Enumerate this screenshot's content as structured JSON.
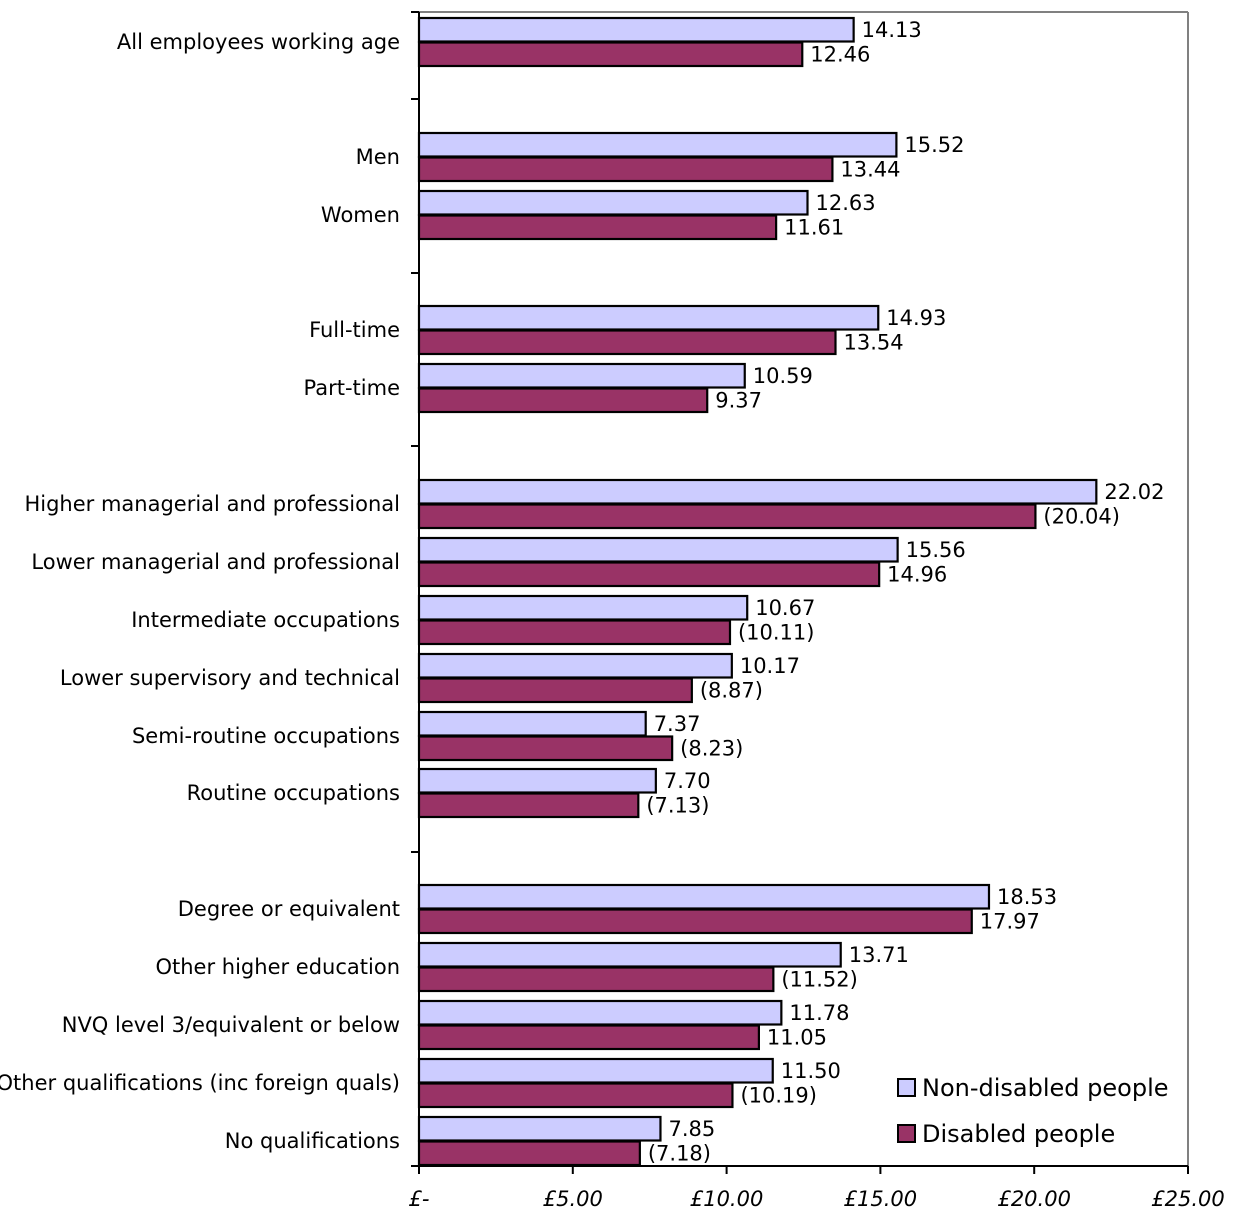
{
  "chart_data": {
    "type": "bar",
    "orientation": "horizontal",
    "title": "",
    "xlabel": "",
    "ylabel": "",
    "xlim": [
      0,
      25
    ],
    "x_ticks": [
      0,
      5,
      10,
      15,
      20,
      25
    ],
    "x_tick_labels": [
      "£-",
      "£5.00",
      "£10.00",
      "£15.00",
      "£20.00",
      "£25.00"
    ],
    "grid": false,
    "legend_position": "bottom-right",
    "categories": [
      "All employees working age",
      "Men",
      "Women",
      "Full-time",
      "Part-time",
      "Higher managerial and professional",
      "Lower managerial and professional",
      "Intermediate occupations",
      "Lower supervisory and technical",
      "Semi-routine occupations",
      "Routine occupations",
      "Degree or equivalent",
      "Other higher education",
      "NVQ level 3/equivalent or below",
      "Other qualifications (inc foreign quals)",
      "No qualifications"
    ],
    "group_breaks_after": [
      0,
      2,
      4,
      10
    ],
    "series": [
      {
        "name": "Non-disabled people",
        "color": "#ccccff",
        "values": [
          14.13,
          15.52,
          12.63,
          14.93,
          10.59,
          22.02,
          15.56,
          10.67,
          10.17,
          7.37,
          7.7,
          18.53,
          13.71,
          11.78,
          11.5,
          7.85
        ],
        "labels": [
          "14.13",
          "15.52",
          "12.63",
          "14.93",
          "10.59",
          "22.02",
          "15.56",
          "10.67",
          "10.17",
          "7.37",
          "7.70",
          "18.53",
          "13.71",
          "11.78",
          "11.50",
          "7.85"
        ]
      },
      {
        "name": "Disabled people",
        "color": "#993366",
        "values": [
          12.46,
          13.44,
          11.61,
          13.54,
          9.37,
          20.04,
          14.96,
          10.11,
          8.87,
          8.23,
          7.13,
          17.97,
          11.52,
          11.05,
          10.19,
          7.18
        ],
        "labels": [
          "12.46",
          "13.44",
          "11.61",
          "13.54",
          "9.37",
          "(20.04)",
          "14.96",
          "(10.11)",
          "(8.87)",
          "(8.23)",
          "(7.13)",
          "17.97",
          "(11.52)",
          "11.05",
          "(10.19)",
          "(7.18)"
        ]
      }
    ]
  }
}
